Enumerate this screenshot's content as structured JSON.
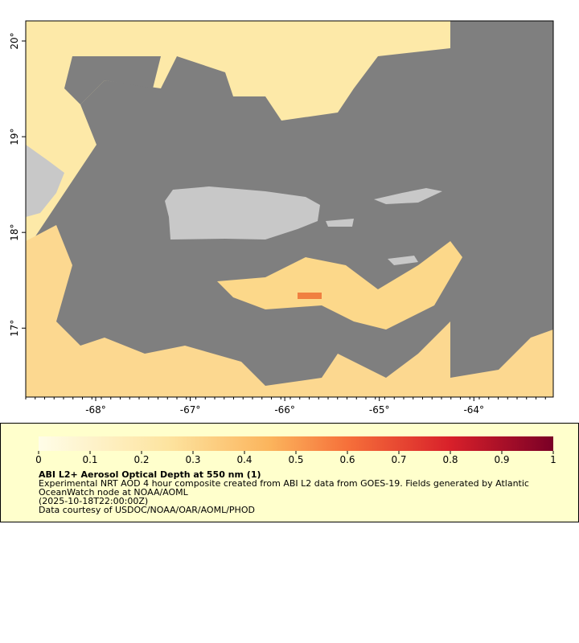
{
  "map": {
    "xlim": [
      -68.74,
      -63.16
    ],
    "ylim": [
      16.28,
      20.21
    ],
    "xticks": [
      {
        "value": -68,
        "label": "-68°"
      },
      {
        "value": -67,
        "label": "-67°"
      },
      {
        "value": -66,
        "label": "-66°"
      },
      {
        "value": -65,
        "label": "-65°"
      },
      {
        "value": -64,
        "label": "-64°"
      }
    ],
    "yticks": [
      {
        "value": 17,
        "label": "17°"
      },
      {
        "value": 18,
        "label": "18°"
      },
      {
        "value": 19,
        "label": "19°"
      },
      {
        "value": 20,
        "label": "20°"
      }
    ]
  },
  "colorbar": {
    "range": [
      0,
      1
    ],
    "ticks": [
      0,
      0.1,
      0.2,
      0.3,
      0.4,
      0.5,
      0.6,
      0.7,
      0.8,
      0.9,
      1
    ]
  },
  "title": "ABI L2+ Aerosol Optical Depth at 550 nm (1)",
  "description": "Experimental NRT AOD 4 hour composite created from ABI L2 data from GOES-19. Fields generated by Atlantic OceanWatch node at NOAA/AOML",
  "date": "(2025-10-18T22:00:00Z)",
  "credits": "Data courtesy of USDOC/NOAA/OAR/AOML/PHOD"
}
